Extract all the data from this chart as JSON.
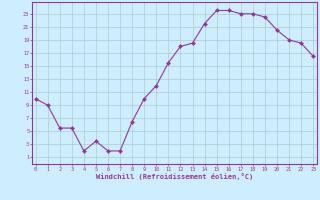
{
  "x": [
    0,
    1,
    2,
    3,
    4,
    5,
    6,
    7,
    8,
    9,
    10,
    11,
    12,
    13,
    14,
    15,
    16,
    17,
    18,
    19,
    20,
    21,
    22,
    23
  ],
  "y": [
    10,
    9,
    5.5,
    5.5,
    2,
    3.5,
    2,
    2,
    6.5,
    10,
    12,
    15.5,
    18,
    18.5,
    21.5,
    23.5,
    23.5,
    23,
    23,
    22.5,
    20.5,
    19,
    18.5,
    16.5
  ],
  "line_color": "#993399",
  "marker_color": "#993399",
  "bg_color": "#cceeff",
  "grid_color": "#aacccc",
  "xlabel": "Windchill (Refroidissement éolien,°C)",
  "yticks": [
    1,
    3,
    5,
    7,
    9,
    11,
    13,
    15,
    17,
    19,
    21,
    23
  ],
  "xticks": [
    0,
    1,
    2,
    3,
    4,
    5,
    6,
    7,
    8,
    9,
    10,
    11,
    12,
    13,
    14,
    15,
    16,
    17,
    18,
    19,
    20,
    21,
    22,
    23
  ],
  "xlim": [
    -0.3,
    23.3
  ],
  "ylim": [
    0.0,
    24.8
  ],
  "font_color": "#993399"
}
